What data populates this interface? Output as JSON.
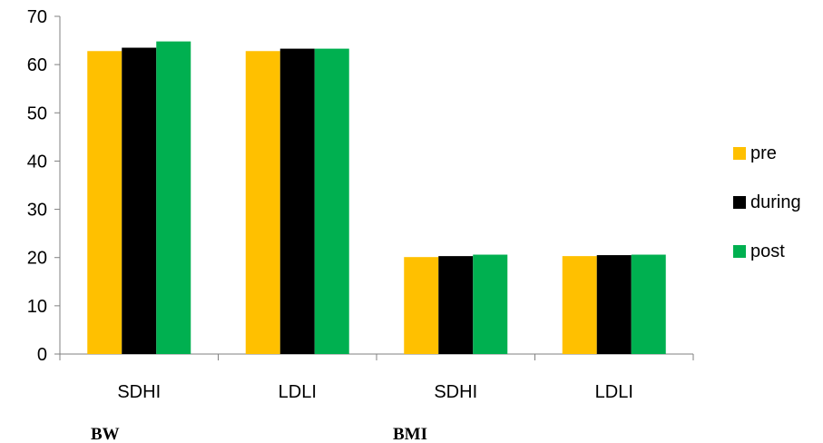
{
  "chart_data": {
    "type": "bar",
    "categories": [
      "SDHI",
      "LDLI",
      "SDHI",
      "LDLI"
    ],
    "groups": [
      "BW",
      "BMI"
    ],
    "series": [
      {
        "name": "pre",
        "color": "#FFC000",
        "values": [
          62.8,
          62.8,
          20.1,
          20.3
        ]
      },
      {
        "name": "during",
        "color": "#000000",
        "values": [
          63.5,
          63.3,
          20.3,
          20.5
        ]
      },
      {
        "name": "post",
        "color": "#00B050",
        "values": [
          64.8,
          63.3,
          20.6,
          20.6
        ]
      }
    ],
    "ylim": [
      0,
      70
    ],
    "yticks": [
      0,
      10,
      20,
      30,
      40,
      50,
      60,
      70
    ],
    "legend_position": "right",
    "grid": false
  }
}
